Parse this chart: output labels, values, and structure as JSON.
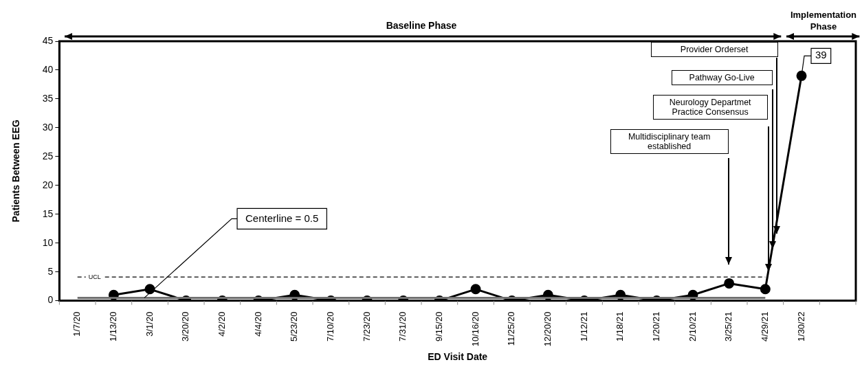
{
  "chart_data": {
    "type": "line",
    "xlabel": "ED Visit Date",
    "ylabel": "Patients Between EEG",
    "categories": [
      "1/7/20",
      "1/13/20",
      "3/1/20",
      "3/20/20",
      "4/2/20",
      "4/4/20",
      "5/23/20",
      "7/10/20",
      "7/23/20",
      "7/31/20",
      "9/15/20",
      "10/16/20",
      "11/25/20",
      "12/20/20",
      "1/12/21",
      "1/18/21",
      "1/20/21",
      "2/10/21",
      "3/25/21",
      "4/29/21",
      "1/30/22",
      null
    ],
    "series": [
      {
        "color": "#000000",
        "values": [
          null,
          1,
          2,
          0,
          0,
          0,
          1,
          0,
          0,
          0,
          0,
          2,
          0,
          1,
          0,
          1,
          0,
          1,
          3,
          2,
          39,
          null
        ],
        "value_labels": [
          null,
          null,
          null,
          null,
          null,
          null,
          null,
          null,
          null,
          null,
          null,
          null,
          null,
          null,
          null,
          null,
          null,
          null,
          null,
          null,
          "39",
          null
        ]
      }
    ],
    "ylim": [
      0,
      45
    ],
    "yticks": [
      0,
      5,
      10,
      15,
      20,
      25,
      30,
      35,
      40,
      45
    ],
    "marker": "circle",
    "line_style": "solid",
    "ref_lines": [
      {
        "axis": "y",
        "value": 4.1,
        "label": "UCL",
        "line_style": "dashed",
        "color": "#000000"
      },
      {
        "axis": "y",
        "value": 0.5,
        "label": "Centerline = 0.5",
        "line_style": "solid",
        "color": "#707070"
      }
    ],
    "annotations": [
      "Baseline Phase",
      "Implementation Phase",
      "Provider Orderset",
      "Pathway Go-Live",
      "Neurology Departmet Practice Consensus",
      "Multidisciplinary team established"
    ]
  }
}
